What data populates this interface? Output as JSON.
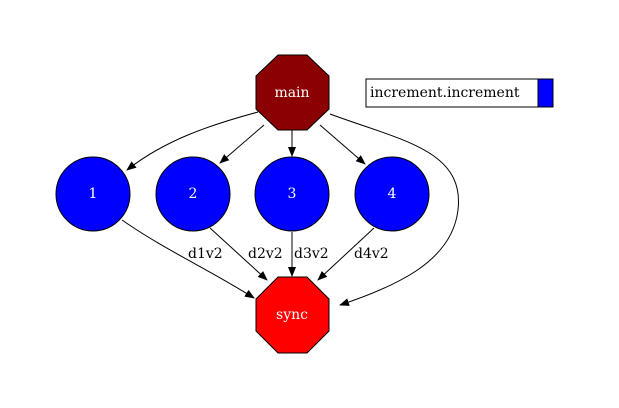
{
  "graph": {
    "nodes": {
      "main": {
        "label": "main",
        "shape": "octagon",
        "fill": "#8b0000"
      },
      "n1": {
        "label": "1",
        "shape": "circle",
        "fill": "#0000ff"
      },
      "n2": {
        "label": "2",
        "shape": "circle",
        "fill": "#0000ff"
      },
      "n3": {
        "label": "3",
        "shape": "circle",
        "fill": "#0000ff"
      },
      "n4": {
        "label": "4",
        "shape": "circle",
        "fill": "#0000ff"
      },
      "sync": {
        "label": "sync",
        "shape": "octagon",
        "fill": "#ff0000"
      }
    },
    "edges": [
      {
        "from": "main",
        "to": "n1",
        "label": ""
      },
      {
        "from": "main",
        "to": "n2",
        "label": ""
      },
      {
        "from": "main",
        "to": "n3",
        "label": ""
      },
      {
        "from": "main",
        "to": "n4",
        "label": ""
      },
      {
        "from": "main",
        "to": "sync",
        "label": ""
      },
      {
        "from": "n1",
        "to": "sync",
        "label": "d1v2"
      },
      {
        "from": "n2",
        "to": "sync",
        "label": "d2v2"
      },
      {
        "from": "n3",
        "to": "sync",
        "label": "d3v2"
      },
      {
        "from": "n4",
        "to": "sync",
        "label": "d4v2"
      }
    ]
  },
  "legend": {
    "label": "increment.increment",
    "swatch_color": "#0000ff"
  },
  "colors": {
    "edge": "#000000",
    "node_border": "#000000"
  }
}
